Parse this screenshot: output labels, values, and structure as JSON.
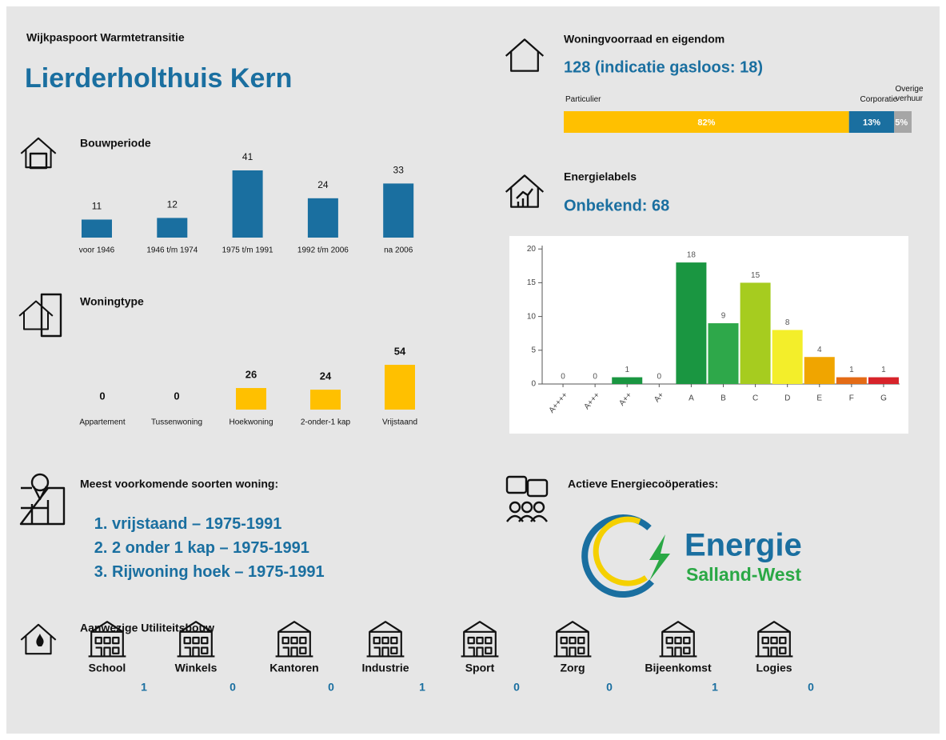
{
  "header": {
    "subtitle": "Wijkpaspoort Warmtetransitie",
    "title": "Lierderholthuis Kern"
  },
  "chart_data": [
    {
      "type": "bar",
      "title": "Bouwperiode",
      "categories": [
        "voor 1946",
        "1946 t/m 1974",
        "1975 t/m 1991",
        "1992 t/m 2006",
        "na 2006"
      ],
      "values": [
        11,
        12,
        41,
        24,
        33
      ],
      "color": "#1a6fa0"
    },
    {
      "type": "bar",
      "title": "Woningtype",
      "categories": [
        "Appartement",
        "Tussenwoning",
        "Hoekwoning",
        "2-onder-1 kap",
        "Vrijstaand"
      ],
      "values": [
        0,
        0,
        26,
        24,
        54
      ],
      "color": "#ffc000"
    },
    {
      "type": "stacked-bar",
      "title": "Woningvoorraad en eigendom",
      "headline": "128 (indicatie gasloos: 18)",
      "series": [
        {
          "name": "Particulier",
          "color": "#ffc000",
          "values": [
            82
          ],
          "value_labels": [
            "82%"
          ]
        },
        {
          "name": "Corporatie",
          "color": "#1a6fa0",
          "values": [
            13
          ],
          "value_labels": [
            "13%"
          ]
        },
        {
          "name": "Overige verhuur",
          "color": "#a6a6a6",
          "values": [
            5
          ],
          "value_labels": [
            "5%"
          ]
        }
      ]
    },
    {
      "type": "bar",
      "title": "Energielabels",
      "headline": "Onbekend: 68",
      "categories": [
        "A++++",
        "A+++",
        "A++",
        "A+",
        "A",
        "B",
        "C",
        "D",
        "E",
        "F",
        "G"
      ],
      "values": [
        0,
        0,
        1,
        0,
        18,
        9,
        15,
        8,
        4,
        1,
        1
      ],
      "colors": [
        "#1a9641",
        "#1a9641",
        "#1a9641",
        "#1a9641",
        "#1a9641",
        "#2ea84a",
        "#a6cc1f",
        "#f3ee2a",
        "#f0a500",
        "#e46b16",
        "#d7232a"
      ],
      "ylim": [
        0,
        20.5
      ],
      "yticks": [
        0,
        5,
        10,
        15,
        20
      ]
    }
  ],
  "meest": {
    "title": "Meest voorkomende soorten woning:",
    "items": [
      "vrijstaand – 1975-1991",
      "2 onder 1 kap – 1975-1991",
      "Rijwoning hoek – 1975-1991"
    ]
  },
  "utiliteit": {
    "title": "Aanwezige Utiliteitsbouw",
    "items": [
      {
        "label": "School",
        "count": 1
      },
      {
        "label": "Winkels",
        "count": 0
      },
      {
        "label": "Kantoren",
        "count": 0
      },
      {
        "label": "Industrie",
        "count": 1
      },
      {
        "label": "Sport",
        "count": 0
      },
      {
        "label": "Zorg",
        "count": 0
      },
      {
        "label": "Bijeenkomst",
        "count": 1
      },
      {
        "label": "Logies",
        "count": 0
      }
    ]
  },
  "cooperaties": {
    "title": "Actieve Energiecoöperaties:",
    "logo": {
      "name": "Energie",
      "region": "Salland-West"
    }
  }
}
